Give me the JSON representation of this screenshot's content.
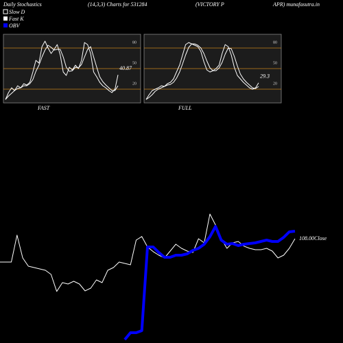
{
  "header": {
    "title": "Daily Stochastics",
    "params": "(14,3,3) Charts for 531284",
    "name1": "(VICTORY P",
    "name2": "APR) munafasutra.in"
  },
  "chart_data": [
    {
      "type": "line",
      "title": "FAST",
      "ylim": [
        0,
        100
      ],
      "yticks": [
        20,
        50,
        80
      ],
      "grid": true,
      "grid_color": "#c8801a",
      "series": [
        {
          "name": "Slow  D",
          "color": "#ffffff",
          "values": [
            5,
            10,
            14,
            18,
            21,
            22,
            25,
            25,
            28,
            34,
            46,
            55,
            67,
            77,
            84,
            81,
            77,
            78,
            78,
            67,
            52,
            46,
            47,
            52,
            51,
            56,
            67,
            78,
            82,
            67,
            52,
            38,
            31,
            26,
            22,
            18,
            18,
            25
          ]
        },
        {
          "name": "Fast K",
          "color": "#ffffff",
          "values": [
            5,
            15,
            22,
            18,
            25,
            22,
            28,
            26,
            30,
            45,
            62,
            58,
            82,
            90,
            80,
            72,
            78,
            85,
            70,
            45,
            40,
            52,
            48,
            55,
            50,
            62,
            88,
            85,
            72,
            45,
            38,
            30,
            25,
            22,
            18,
            15,
            20,
            40.87
          ]
        }
      ]
    },
    {
      "type": "line",
      "title": "FULL",
      "ylim": [
        0,
        100
      ],
      "yticks": [
        20,
        50,
        80
      ],
      "grid": true,
      "grid_color": "#c8801a",
      "series": [
        {
          "color": "#ffffff",
          "values": [
            5,
            8,
            12,
            17,
            20,
            22,
            24,
            26,
            27,
            30,
            36,
            45,
            57,
            70,
            81,
            86,
            86,
            84,
            80,
            72,
            61,
            51,
            47,
            47,
            51,
            59,
            71,
            80,
            79,
            68,
            54,
            42,
            35,
            30,
            26,
            22,
            21,
            24
          ]
        },
        {
          "color": "#ffffff",
          "values": [
            5,
            12,
            18,
            20,
            22,
            25,
            24,
            28,
            30,
            35,
            45,
            55,
            70,
            85,
            88,
            86,
            84,
            82,
            75,
            60,
            48,
            45,
            47,
            50,
            55,
            72,
            85,
            82,
            70,
            52,
            40,
            35,
            30,
            26,
            22,
            20,
            22,
            29.3
          ]
        }
      ]
    },
    {
      "type": "line",
      "ylim": [
        70,
        120
      ],
      "y2lim": [
        0,
        100
      ],
      "close_label": "108.00Close",
      "series": [
        {
          "color": "#ffffff",
          "values": [
            99.5,
            99.5,
            99.5,
            109.3,
            101,
            98,
            97.5,
            97,
            96.5,
            95,
            88.8,
            92,
            91.5,
            92.5,
            91.5,
            89,
            90,
            93,
            92,
            96.5,
            97.5,
            99.5,
            99,
            98.5,
            107.5,
            108.8,
            105,
            103.3,
            102,
            101,
            103.5,
            106,
            104.5,
            103.5,
            103,
            108,
            106.5,
            117,
            113,
            108,
            104.5,
            106.5,
            107,
            105.3,
            104.5,
            104,
            104,
            104.5,
            103.5,
            101,
            102,
            104.5,
            108
          ]
        },
        {
          "name": "OBV",
          "color": "#0000ff",
          "axis": "y2",
          "values": [
            null,
            null,
            null,
            null,
            null,
            null,
            null,
            null,
            null,
            null,
            null,
            null,
            null,
            null,
            null,
            null,
            null,
            null,
            null,
            null,
            null,
            null,
            2.5,
            7.5,
            7.5,
            9,
            70,
            70,
            66,
            62.5,
            62.5,
            64,
            64,
            65,
            67.5,
            69,
            72,
            77.5,
            85,
            75,
            72,
            72.5,
            71,
            72,
            72.5,
            73,
            74,
            75,
            74,
            74,
            77,
            81,
            81.5
          ]
        }
      ]
    }
  ]
}
